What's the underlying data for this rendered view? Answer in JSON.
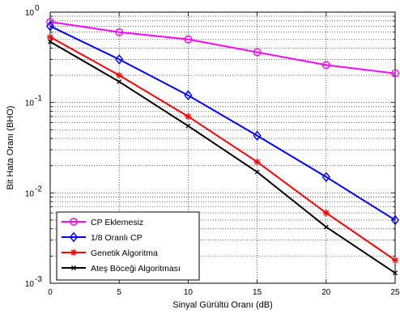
{
  "chart_data": {
    "type": "line",
    "xlabel": "Sinyal Gürültü Oranı (dB)",
    "ylabel": "Bit Hata Oranı (BHO)",
    "x": [
      0,
      5,
      10,
      15,
      20,
      25
    ],
    "xlim": [
      0,
      25
    ],
    "ylim": [
      0.001,
      1
    ],
    "yscale": "log",
    "grid": true,
    "legend_position": "bottom-left",
    "x_tick_labels": [
      "0",
      "5",
      "10",
      "15",
      "20",
      "25"
    ],
    "y_tick_labels": [
      {
        "value": 1,
        "base": "10",
        "exp": "0"
      },
      {
        "value": 0.1,
        "base": "10",
        "exp": "-1"
      },
      {
        "value": 0.01,
        "base": "10",
        "exp": "-2"
      },
      {
        "value": 0.001,
        "base": "10",
        "exp": "-3"
      }
    ],
    "series": [
      {
        "name": "CP Eklemesiz",
        "color": "#ff00ff",
        "marker": "circle",
        "values": [
          0.78,
          0.6,
          0.5,
          0.36,
          0.26,
          0.21
        ]
      },
      {
        "name": "1/8 Oranlı CP",
        "color": "#0000ff",
        "marker": "diamond",
        "values": [
          0.7,
          0.3,
          0.12,
          0.043,
          0.015,
          0.005
        ]
      },
      {
        "name": "Genetik Algoritma",
        "color": "#ff0000",
        "marker": "star",
        "values": [
          0.53,
          0.2,
          0.07,
          0.022,
          0.006,
          0.0018
        ]
      },
      {
        "name": "Ateş Böceği Algoritması",
        "color": "#000000",
        "marker": "x",
        "values": [
          0.47,
          0.17,
          0.055,
          0.017,
          0.0042,
          0.0013
        ]
      }
    ]
  }
}
